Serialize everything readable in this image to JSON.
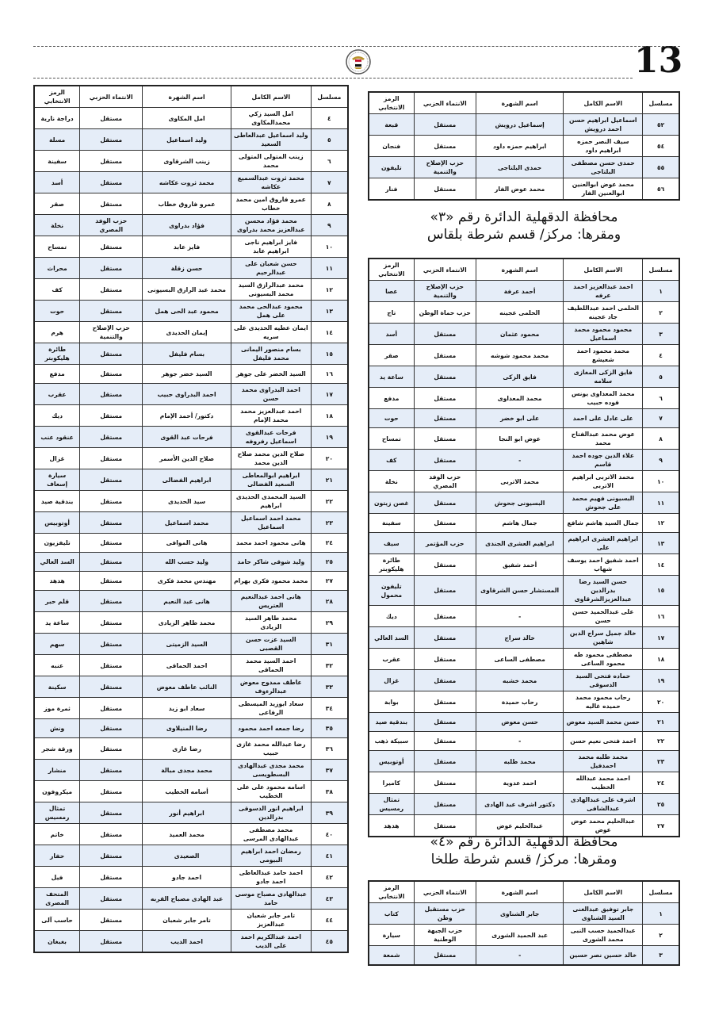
{
  "page_number": "13",
  "headers": [
    "مسلسل",
    "الاسم الكامل",
    "اسم الشهرة",
    "الانتماء الحزبي",
    "الرمز الانتخابي"
  ],
  "colors": {
    "row_alt": "#e5edf8",
    "border": "#222222"
  },
  "emblem_icon": "egypt-eagle-emblem",
  "left_table": [
    [
      "٤",
      "امل السيد زكي محمدالمكاوى",
      "امل المكاوى",
      "مستقل",
      "دراجة نارية"
    ],
    [
      "٥",
      "وليد اسماعيل عبدالعاطى السعيد",
      "وليد اسماعيل",
      "مستقل",
      "مسلة"
    ],
    [
      "٦",
      "زينب المتولى المتولى محمد",
      "زينب الشرقاوى",
      "مستقل",
      "سفينة"
    ],
    [
      "٧",
      "محمد ثروت عبدالسميع عكاشه",
      "محمد ثروت عكاشه",
      "مستقل",
      "أسد"
    ],
    [
      "٨",
      "عمرو فاروق امين محمد خطاب",
      "عمرو فاروق خطاب",
      "مستقل",
      "صقر"
    ],
    [
      "٩",
      "محمد فؤاد محسن عبدالعزيز محمد بدراوى",
      "فؤاد بدراوى",
      "حزب الوفد المصري",
      "نخلة"
    ],
    [
      "١٠",
      "فايز ابراهيم ناجى ابراهيم عابد",
      "فايز عابد",
      "مستقل",
      "تمساح"
    ],
    [
      "١١",
      "حسن شعبان على عبدالرحيم",
      "حسن زقلة",
      "مستقل",
      "محراث"
    ],
    [
      "١٢",
      "محمد عبدالرازق السيد محمد البسيونى",
      "محمد عبد الرازق البسيونى",
      "مستقل",
      "كف"
    ],
    [
      "١٣",
      "محمود عبدالحى محمد على همل",
      "محمود عبد الحى همل",
      "مستقل",
      "حوت"
    ],
    [
      "١٤",
      "ايمان عطيه الحديدى على سريه",
      "إيمان الحديدى",
      "حزب الإصلاح والتنمية",
      "هرم"
    ],
    [
      "١٥",
      "بسام منصور اليمانى محمد فليفل",
      "بسام فليفل",
      "مستقل",
      "طائرة هليكوبتر"
    ],
    [
      "١٦",
      "السيد الخضر على جوهر",
      "السيد خضر جوهر",
      "مستقل",
      "مدفع"
    ],
    [
      "١٧",
      "احمد البدراوى محمد حسن",
      "احمد البدراوى حبيب",
      "مستقل",
      "عقرب"
    ],
    [
      "١٨",
      "احمد عبدالعزيز محمد محمد الإمام",
      "دكتور/ أحمد الإمام",
      "مستقل",
      "ديك"
    ],
    [
      "١٩",
      "فرحات عبدالقوى اسماعيل رفروفه",
      "فرحات عبد القوى",
      "مستقل",
      "عنقود عنب"
    ],
    [
      "٢٠",
      "صلاح الدين محمد صلاح الدين محمد",
      "صلاح الدين الأسمر",
      "مستقل",
      "غزال"
    ],
    [
      "٢١",
      "ابراهيم ابوالمعاطى السعيد الفضالى",
      "ابراهيم الفضالى",
      "مستقل",
      "سيارة إسعاف"
    ],
    [
      "٢٢",
      "السيد المحمدى الحديدى ابراهيم",
      "سيد الحديدى",
      "مستقل",
      "بندقية صيد"
    ],
    [
      "٢٣",
      "محمد احمد اسماعيل اسماعيل",
      "محمد اسماعيل",
      "مستقل",
      "أوتوبيس"
    ],
    [
      "٢٤",
      "هانى محمود احمد محمد",
      "هانى الموافى",
      "مستقل",
      "تليفزيون"
    ],
    [
      "٢٥",
      "وليد شوقى شاكر حامد",
      "وليد حسب الله",
      "مستقل",
      "السد العالي"
    ],
    [
      "٢٧",
      "محمد محمود فكرى بهرام",
      "مهندس محمد فكرى",
      "مستقل",
      "هدهد"
    ],
    [
      "٢٨",
      "هانى احمد عبدالنعيم العتريس",
      "هانى عبد النعيم",
      "مستقل",
      "قلم حبر"
    ],
    [
      "٢٩",
      "محمد طاهر السيد الزيادى",
      "محمد طاهر الزيادى",
      "مستقل",
      "ساعة يد"
    ],
    [
      "٣١",
      "السيد عزت حسن القصبى",
      "السيد الزميتى",
      "مستقل",
      "سهم"
    ],
    [
      "٣٢",
      "احمد السيد محمد الحماقى",
      "احمد الحماقى",
      "مستقل",
      "عنبه"
    ],
    [
      "٣٣",
      "عاطف ممدوح معوض عبدالرءوف",
      "النائب عاطف معوض",
      "مستقل",
      "سكينة"
    ],
    [
      "٣٤",
      "سعاد ابوزيد الميسطى الرفاعى",
      "سعاد ابو زيد",
      "مستقل",
      "ثمرة موز"
    ],
    [
      "٣٥",
      "رضا جمعه احمد محمود",
      "رضا المنيلاوى",
      "مستقل",
      "ونش"
    ],
    [
      "٣٦",
      "رضا عبدالله محمد غازى حبيب",
      "رضا غازى",
      "مستقل",
      "ورقة شجر"
    ],
    [
      "٣٧",
      "محمد مجدى عبدالهادى البسطويسى",
      "محمد مجدى مبالة",
      "مستقل",
      "منشار"
    ],
    [
      "٣٨",
      "اسامه محمود على على الخطيب",
      "أسامه الخطيب",
      "مستقل",
      "ميكروفون"
    ],
    [
      "٣٩",
      "ابراهيم انور الدسوقى بدرالدين",
      "ابراهيم أنور",
      "مستقل",
      "تمثال رمسيس"
    ],
    [
      "٤٠",
      "محمد مصطفى عبدالهادى المرسى",
      "محمد العميد",
      "مستقل",
      "خاتم"
    ],
    [
      "٤١",
      "رمضان احمد ابراهيم البيومى",
      "الصعيدى",
      "مستقل",
      "حفار"
    ],
    [
      "٤٢",
      "احمد حامد عبدالعاطى احمد جادو",
      "احمد جادو",
      "مستقل",
      "فيل"
    ],
    [
      "٤٣",
      "عبدالهادى مصباح موسى حامد",
      "عبد الهادى مصباح القربه",
      "مستقل",
      "المتحف المصرى"
    ],
    [
      "٤٤",
      "تامر جابر شعبان عبدالعزيز",
      "تامر جابر شعبان",
      "مستقل",
      "حاسب آلى"
    ],
    [
      "٤٥",
      "احمد عبدالكريم احمد على الديب",
      "احمد الديب",
      "مستقل",
      "بغبغان"
    ]
  ],
  "top_right_table": [
    [
      "٥٢",
      "اسماعيل ابراهيم حسن احمد درويش",
      "إسماعيل درويش",
      "مستقل",
      "قبعة"
    ],
    [
      "٥٤",
      "سيف النصر حمزه ابراهيم داود",
      "ابراهيم حمزه داود",
      "مستقل",
      "فنجان"
    ],
    [
      "٥٥",
      "حمدى حسن مصطفى البلتاجى",
      "حمدى البلتاجى",
      "حزب الإصلاح والتنمية",
      "تليفون"
    ],
    [
      "٥٦",
      "محمد عوض ابوالعنين ابوالعنين الفار",
      "محمد عوض الفار",
      "مستقل",
      "فنار"
    ]
  ],
  "district3": {
    "title": "محافظة الدقهلية الدائرة رقم «٣»",
    "subtitle": "ومقرها: مركز/ قسم شرطة بلقاس",
    "rows": [
      [
        "١",
        "احمد عبدالعزيز احمد عرفه",
        "أحمد عرفة",
        "حزب الإصلاح والتنمية",
        "عصا"
      ],
      [
        "٢",
        "الحلمى احمد عبداللطيف جاد عجينه",
        "الحلمى عجينه",
        "حزب حماة الوطن",
        "تاج"
      ],
      [
        "٣",
        "محمود محمود محمد اسماعيل",
        "محمود عثمان",
        "مستقل",
        "أسد"
      ],
      [
        "٤",
        "محمد محمود احمد شعيشع",
        "محمد محمود شوشه",
        "مستقل",
        "صقر"
      ],
      [
        "٥",
        "فايق الزكى المغازى سلامه",
        "فايق الزكى",
        "مستقل",
        "ساعة يد"
      ],
      [
        "٦",
        "محمد المعداوى يونس فوده حبيب",
        "محمد المعداوى",
        "مستقل",
        "مدفع"
      ],
      [
        "٧",
        "على عادل على احمد",
        "على ابو خضر",
        "مستقل",
        "حوت"
      ],
      [
        "٨",
        "عوض محمد عبدالفتاح محمد",
        "عوض ابو النجا",
        "مستقل",
        "تمساح"
      ],
      [
        "٩",
        "علاء الدين جوده احمد قاسم",
        "-",
        "مستقل",
        "كف"
      ],
      [
        "١٠",
        "محمد الاتربى ابراهيم الاتربى",
        "محمد الاتربى",
        "حزب الوفد المصري",
        "نخلة"
      ],
      [
        "١١",
        "البسيونى فهيم محمد على جحوش",
        "البسيونى جحوش",
        "مستقل",
        "غصن زيتون"
      ],
      [
        "١٢",
        "جمال السيد هاشم شافع",
        "جمال هاشم",
        "مستقل",
        "سفينة"
      ],
      [
        "١٣",
        "ابراهيم العشرى ابراهيم على",
        "ابراهيم العشرى الجندى",
        "حزب المؤتمر",
        "سيف"
      ],
      [
        "١٤",
        "احمد شفيق احمد يوسف شهاب",
        "أحمد شفيق",
        "مستقل",
        "طائرة هليكوبتر"
      ],
      [
        "١٥",
        "حسن السيد رضا بدرالدين عبدالعزيزالشرقاوى",
        "المستشار حسن الشرقاوى",
        "مستقل",
        "تليفون محمول"
      ],
      [
        "١٦",
        "على عبدالحميد حسن حسن",
        "-",
        "مستقل",
        "ديك"
      ],
      [
        "١٧",
        "خالد جميل سراج الدين شاهين",
        "خالد سراج",
        "مستقل",
        "السد العالي"
      ],
      [
        "١٨",
        "مصطفى محمود طه محمود الساعى",
        "مصطفى الساعى",
        "مستقل",
        "عقرب"
      ],
      [
        "١٩",
        "حماده فتحى السيد الدسوقى",
        "محمد خشبه",
        "مستقل",
        "غزال"
      ],
      [
        "٢٠",
        "رحاب محمود محمد حميده غاليه",
        "رحاب حميدة",
        "مستقل",
        "بوابة"
      ],
      [
        "٢١",
        "حسن محمد السيد معوض",
        "حسن معوض",
        "مستقل",
        "بندقية صيد"
      ],
      [
        "٢٢",
        "احمد فتحى نعيم حسن",
        "-",
        "مستقل",
        "سبيكة ذهب"
      ],
      [
        "٢٣",
        "محمد طلبه محمد احمدفيل",
        "محمد طلبه",
        "مستقل",
        "أوتوبيس"
      ],
      [
        "٢٤",
        "احمد محمد عبدالله الخطيب",
        "احمد عدوية",
        "مستقل",
        "كاميرا"
      ],
      [
        "٢٥",
        "اشرف على عبدالهادى عبدالشافى",
        "دكتور اشرف عبد الهادى",
        "مستقل",
        "تمثال رمسيس"
      ],
      [
        "٢٧",
        "عبدالحليم محمد عوض عوض",
        "عبدالحليم عوض",
        "مستقل",
        "هدهد"
      ]
    ]
  },
  "district4": {
    "title": "محافظة الدقهلية الدائرة رقم «٤»",
    "subtitle": "ومقرها: مركز/ قسم شرطة طلخا",
    "rows": [
      [
        "١",
        "جابر توفيق عبدالغنى السيد الشناوى",
        "جابر الشناوى",
        "حزب مستقبل وطن",
        "كتاب"
      ],
      [
        "٢",
        "عبدالحميد حسب النبى محمد الشورى",
        "عبد الحميد الشورى",
        "حزب الجبهة الوطنية",
        "سيارة"
      ],
      [
        "٣",
        "خالد حسين نصر حسين",
        "-",
        "مستقل",
        "شمعة"
      ]
    ]
  }
}
